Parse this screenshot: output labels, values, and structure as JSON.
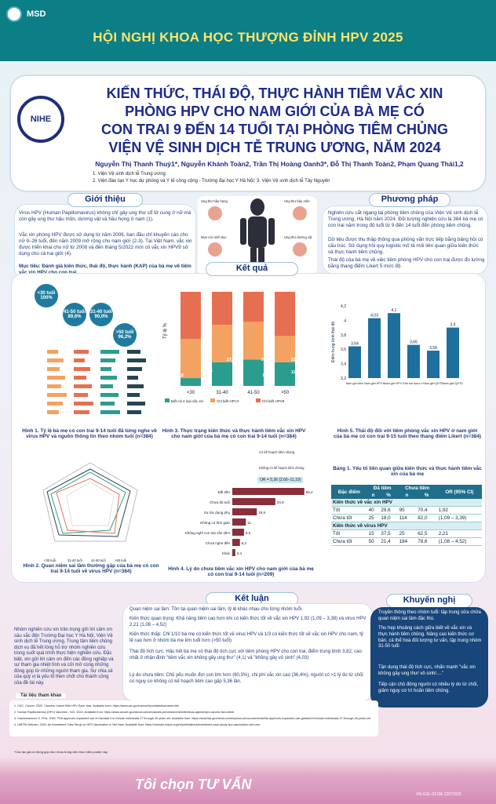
{
  "header": {
    "brand": "MSD",
    "conference": "HỘI NGHỊ KHOA HỌC THƯỢNG ĐỈNH HPV 2025",
    "logo_text": "NIHE"
  },
  "title": {
    "lines": [
      "KIẾN THỨC, THÁI ĐỘ, THỰC HÀNH TIÊM VẮC XIN",
      "PHÒNG HPV CHO NAM GIỚI CỦA BÀ MẸ CÓ",
      "CON TRAI 9 ĐẾN 14 TUỔI TẠI PHÒNG TIÊM CHỦNG",
      "VIỆN VỆ SINH DỊCH TỄ TRUNG ƯƠNG, NĂM 2024"
    ],
    "authors": "Nguyễn Thị Thanh Thuỷ1*, Nguyễn Khánh Toàn2, Trần Thị Hoàng Oanh3*, Đỗ Thị Thanh Toàn2, Phạm Quang Thái1,2",
    "affil1": "1. Viện Vệ sinh dịch tễ Trung ương",
    "affil2": "2. Viện đào tạo Y học dự phòng và Y tế công cộng - Trường đại học Y Hà Nội; 3. Viện Vệ sinh dịch tễ Tây Nguyên"
  },
  "sections": {
    "intro": "Giới thiệu",
    "method": "Phương pháp",
    "results": "Kết quả",
    "conclusion": "Kết luận",
    "recommend": "Khuyến nghị",
    "refs": "Tài liệu tham khảo"
  },
  "intro": {
    "p1": "Virus HPV (Human Papillomavirus) không chỉ gây ung thư cổ tử cung ở nữ mà còn gây ung thư hậu môn, dương vật và hầu họng ở nam (1).",
    "p2": "Vắc xin phòng HPV được sử dụng từ năm 2006, ban đầu chỉ khuyến cáo cho nữ 9–26 tuổi, đến năm 2009 mở rộng cho nam giới (2-3). Tại Việt Nam, vắc xin được triển khai cho nữ từ 2008 và đến tháng 5/2022 mới có vắc xin HPV9 sử dụng cho cả hai giới (4).",
    "p3": "Mục tiêu: Đánh giá kiến thức, thái độ, thực hành (KAP) của bà mẹ về tiêm vắc xin HPV cho con trai."
  },
  "method": {
    "p1": "Nghiên cứu cắt ngang tại phòng tiêm chủng của Viện Vệ sinh dịch tễ Trung ương, Hà Nội năm 2024. Đối tượng nghiên cứu là 384 bà mẹ có con trai năm trong độ tuổi từ 9 đến 14 tuổi đến phòng tiêm chủng.",
    "p2": "Dữ liệu được thu thập thông qua phỏng vấn trực tiếp bằng bảng hỏi có cấu trúc. Sử dụng hồi quy logistic mô tả mối liên quan giữa kiến thức và thực hành tiêm chủng.",
    "p3": "Thái độ của bà mẹ về việc tiêm phòng HPV cho con trai được đo lường bằng thang điểm Likert 5 mức độ."
  },
  "person_labels": [
    "Ung thư hầu họng",
    "Ung thư hậu môn",
    "Ung thư dương vật",
    "Mụn cóc sinh dục"
  ],
  "fig1": {
    "caption": "Hình 1. Tỷ lệ bà mẹ có con trai 9-14 tuổi đã từng nghe về virus HPV và nguồn thông tin theo nhóm tuổi (n=384)",
    "bubbles": [
      "<30 tuổi 100%",
      "41-50 tuổi 89,6%",
      "31-40 tuổi 90,0%",
      ">50 tuổi 96,2%"
    ]
  },
  "fig2": {
    "caption": "Hình 2. Quan niệm sai lầm thường gặp của bà mẹ có con trai 9-14 tuổi về virus HPV (n=384)",
    "legend": [
      "<30 tuổi",
      "31-40 tuổi",
      "41-50 tuổi",
      ">50 tuổi"
    ]
  },
  "chart_data": [
    {
      "type": "bar",
      "title": "Hình 3. Thực trạng kiến thức và thực hành tiêm vắc xin HPV cho nam giới của bà mẹ có con trai 9-14 tuổi (n=384)",
      "categories": [
        "<30",
        "31-40",
        "41-50",
        ">50"
      ],
      "ylabel": "Tỷ lệ %",
      "ylim": [
        0,
        100
      ],
      "series": [
        {
          "name": "Biết cả 2 loại vắc xin",
          "values": [
            8.3,
            25.0,
            28.0,
            25.0
          ]
        },
        {
          "name": "Chỉ biết HPV4",
          "values": [
            41.7,
            40.0,
            40.0,
            28.0
          ]
        },
        {
          "name": "Chỉ biết HPV9",
          "values": [
            50.0,
            35.0,
            32.0,
            47.0
          ]
        }
      ],
      "labels": [
        "37,5",
        "33,8",
        "33,3",
        "2,8",
        "14,1",
        "7,7",
        "11,5"
      ]
    },
    {
      "type": "bar",
      "title": "Hình 4. Lý do chưa tiêm vắc xin HPV cho nam giới của bà mẹ có con trai 9-14 tuổi (n=209)",
      "categories": [
        "Đắt tiền",
        "Chưa đủ tuổi",
        "Sợ tác dụng phụ",
        "Không có thời gian",
        "Không nghĩ con trai cần tiêm",
        "Chưa nghe đến",
        "Khác"
      ],
      "values": [
        58.4,
        34.9,
        19.9,
        11.0,
        9.5,
        6.2,
        2.4
      ],
      "xlim": [
        0,
        70
      ]
    },
    {
      "type": "bar",
      "title": "Hình 5. Thái độ đối với tiêm phòng vắc xin HPV ở nam giới của bà mẹ có con trai 9-15 tuổi theo thang điểm Likert (n=384)",
      "categories": [
        "Nam giới tiêm phòng HPV để tự bảo vệ",
        "Nam giới HPV không cần thiết",
        "Nam giới HPV không nên tiêm",
        "Bé trai được nhận",
        "Nam giới QHTD",
        "Nam giới QHTD an toàn"
      ],
      "values": [
        3.64,
        4.03,
        4.1,
        3.66,
        3.58,
        3.9
      ],
      "ylim": [
        3.2,
        4.2
      ],
      "ylabel": "Điểm trung bình thái độ"
    }
  ],
  "fig4": {
    "or": "OR = 5,36 (2,66–11,10)",
    "legend": [
      "Có kế hoạch tiêm chủng",
      "Không có kế hoạch tiêm chủng"
    ]
  },
  "table": {
    "title": "Bảng 1. Yếu tố liên quan giữa kiến thức và thực hành tiêm vắc xin của bà mẹ",
    "headers": [
      "Đặc điểm",
      "Đã tiêm",
      "Chưa tiêm",
      "OR (95% CI)"
    ],
    "sub": [
      "n",
      "%",
      "n",
      "%"
    ],
    "group1": "Kiến thức về vắc xin HPV",
    "rows1": [
      [
        "Tốt",
        "40",
        "29,6",
        "95",
        "70,4",
        "1,92"
      ],
      [
        "Chưa tốt",
        "25",
        "18,0",
        "114",
        "82,0",
        "(1,09 – 3,39)"
      ]
    ],
    "group2": "Kiến thức về virus HPV",
    "rows2": [
      [
        "Tốt",
        "15",
        "37,5",
        "25",
        "62,5",
        "2,21"
      ],
      [
        "Chưa tốt",
        "50",
        "21,4",
        "184",
        "78,6",
        "(1,08 – 4,52)"
      ]
    ]
  },
  "conclusion": {
    "text": "Nhóm nghiên cứu xin trân trọng gửi lời cảm ơn sâu sắc đến Trường Đại học Y Hà Nội, Viện Vệ sinh dịch tễ Trung ương, Trung tâm tiêm chủng dịch vụ đã hết lòng hỗ trợ nhóm nghiên cứu trong suốt quá trình thực hiện nghiên cứu. Đặc biệt, xin gửi lời cảm ơn đến các đồng nghiệp và sự tham gia nhiệt tình và cởi mở cùng những đóng góp từ những người tham gia. Sự chia sẻ của quý vị là yếu tố then chốt cho thành công của đề tài này.",
    "items": [
      "Quan niệm sai lầm: Tồn tại quan niệm sai lầm, tỷ lệ khác nhau cho từng nhóm tuổi.",
      "Kiến thức quan trọng: Khả năng tiêm cao hơn khi có kiến thức tốt về vắc xin HPV 1,92 (1,09 – 3,39) và virus HPV 2,21 (1,08 – 4,52)",
      "Kiến thức thấp: Chỉ 1/10 bà mẹ có kiến thức tốt về virus HPV và 1/3 có kiến thức tốt về vắc xin HPV cho nam, tỷ lệ cao hơn ở nhóm bà mẹ lớn tuổi hơn (>50 tuổi)",
      "Thái độ tích cực: Hầu hết bà mẹ có thái độ tích cực với tiêm phòng HPV cho con trai, điểm trung bình 3,82; cao nhất ở nhận định \"tiêm vắc xin không gây ung thư\" (4,1) và \"không gây vô sinh\" (4,03)",
      "Lý do chưa tiêm: Chủ yếu muốn đợi con lớn hơn (60,3%), chi phí vắc xin cao (36,4%); người có >1 lý do từ chối có nguy cơ không có kế hoạch tiêm cao gấp 5,36 lần."
    ]
  },
  "recommend": [
    "Truyền thông theo nhóm tuổi: tập trung sửa chữa quan niệm sai lầm đặc thù.",
    "Thu hẹp khoảng cách giữa biết về vắc xin và thực hành tiêm chủng. Nâng cao kiến thức cơ bản, cả thể hoá đối tượng tư vấn, tập trung nhóm 31-50 tuổi",
    "Tận dụng thái độ tích cực, nhấn mạnh \"vắc xin không gây ung thư/ vô sinh/....\"",
    "Tiếp cận chủ động người có nhiều lý do từ chối, giảm nguy cơ trì hoãn tiêm chủng."
  ],
  "refs": [
    "1. CDC. Cancer. 2020. Cancers Linked With HPV Each Year. Available from: https://www.cdc.gov/cancer/hpv/statistics/cases.htm",
    "2. Human Papillomavirus (HPV) Vaccines - NCI. 2024. Available from: https://www.cancer.gov/about-cancer/causes-prevention/risk/infectious-agents/hpv-vaccine-fact-sheet",
    "3. Gammmaxsver O. FDA. 2020. FDA approves expanded use of Gardasil 9 to include individuals 27 through 45 years old. Available from: https://www.fda.gov/news-events/press-announcements/fda-approves-expanded-use-gardasil-9-include-individuals-27-through-45-years-old",
    "4. UNFPA Vietnam. 2023. An Investment Case Study on HPV Vaccination in Viet Nam. Available from: https://vietnam.unfpa.org/en/publications/investment-case-study-hpv-vaccination-viet-nam"
  ],
  "footnote": "*Các tác giả có đóng góp như nhau trong việc thực hiện poster này",
  "footer": {
    "slogan": "Tôi chọn TƯ VẤN",
    "code": "VN-GSL-02196 22072025"
  }
}
